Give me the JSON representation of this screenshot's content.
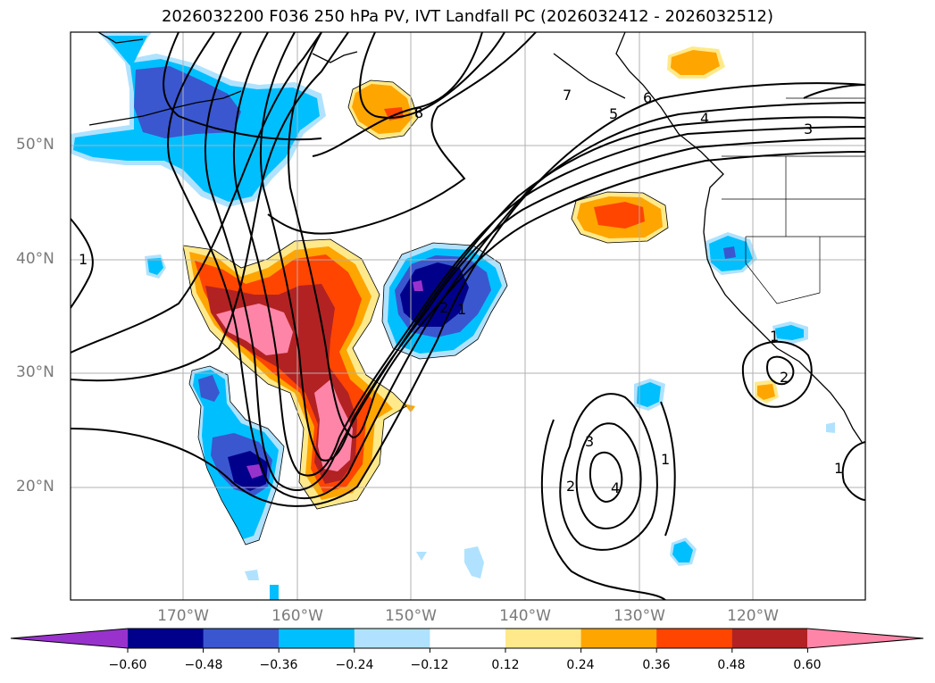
{
  "title": "2026032200 F036 250 hPa PV, IVT Landfall PC (2026032412 - 2026032512)",
  "map": {
    "lat_labels": [
      "50°N",
      "40°N",
      "30°N",
      "20°N"
    ],
    "lon_labels": [
      "170°W",
      "160°W",
      "150°W",
      "140°W",
      "130°W",
      "120°W"
    ],
    "contour_labels": [
      "7",
      "6",
      "5",
      "4",
      "3",
      "8",
      "1",
      "2",
      "3",
      "4",
      "2",
      "1",
      "1",
      "2",
      "1",
      "1"
    ]
  },
  "colorbar": {
    "ticks": [
      "−0.60",
      "−0.48",
      "−0.36",
      "−0.24",
      "−0.12",
      "0.12",
      "0.24",
      "0.36",
      "0.48",
      "0.60"
    ],
    "colors": [
      "#9932cc",
      "#00008b",
      "#3a57cf",
      "#00bfff",
      "#b0e2ff",
      "#ffffff",
      "#ffe98a",
      "#ffa500",
      "#ff4500",
      "#b22222",
      "#ff85a8"
    ]
  }
}
